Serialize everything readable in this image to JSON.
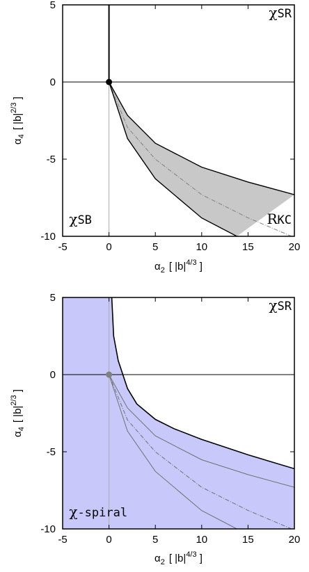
{
  "chart_data": [
    {
      "type": "area",
      "title": "",
      "xlabel": {
        "symbol": "α",
        "sub": "2",
        "unit": "[ |b|",
        "sup": "4/3",
        "close": " ]"
      },
      "ylabel": {
        "symbol": "α",
        "sub": "4",
        "unit": "[ |b|",
        "sup": "2/3",
        "close": " ]"
      },
      "xlim": [
        -5,
        20
      ],
      "ylim": [
        -10,
        5
      ],
      "xticks": [
        -5,
        0,
        5,
        10,
        15,
        20
      ],
      "yticks": [
        -10,
        -5,
        0,
        5
      ],
      "xtick_labels": [
        "-5",
        "0",
        "5",
        "10",
        "15",
        "20"
      ],
      "ytick_labels": [
        "-10",
        "-5",
        "0",
        "5"
      ],
      "region_labels": [
        {
          "text": "χSR",
          "x": 19.7,
          "y": 4.2,
          "anchor": "end"
        },
        {
          "text": "χSB",
          "x": -4.3,
          "y": -9.2,
          "anchor": "start"
        },
        {
          "text": "RKC",
          "x": 19.7,
          "y": -9.2,
          "anchor": "end"
        }
      ],
      "point": {
        "x": 0,
        "y": 0
      },
      "vertical_line": {
        "x": 0,
        "y_from": 0,
        "y_to": 5
      },
      "shaded_region": {
        "color": "#c8c8c8",
        "upper_boundary": [
          [
            0,
            0
          ],
          [
            2,
            -2.16
          ],
          [
            5,
            -3.97
          ],
          [
            10,
            -5.52
          ],
          [
            15,
            -6.48
          ],
          [
            20,
            -7.3
          ]
        ],
        "lower_boundary": [
          [
            0,
            0
          ],
          [
            2,
            -3.66
          ],
          [
            5,
            -6.27
          ],
          [
            10,
            -8.81
          ],
          [
            13.8,
            -10
          ]
        ]
      },
      "dashdot_curve": [
        [
          0,
          0
        ],
        [
          2,
          -2.94
        ],
        [
          5,
          -5.0
        ],
        [
          10,
          -7.3
        ],
        [
          15,
          -8.8
        ],
        [
          19.7,
          -10
        ]
      ],
      "colors": {
        "fill": "#c8c8c8",
        "boundary": "#000000",
        "dashdot": "#808080",
        "reference": "#aaaaaa"
      }
    },
    {
      "type": "area",
      "title": "",
      "xlabel": {
        "symbol": "α",
        "sub": "2",
        "unit": "[ |b|",
        "sup": "4/3",
        "close": " ]"
      },
      "ylabel": {
        "symbol": "α",
        "sub": "4",
        "unit": "[ |b|",
        "sup": "2/3",
        "close": " ]"
      },
      "xlim": [
        -5,
        20
      ],
      "ylim": [
        -10,
        5
      ],
      "xticks": [
        -5,
        0,
        5,
        10,
        15,
        20
      ],
      "yticks": [
        -10,
        -5,
        0,
        5
      ],
      "xtick_labels": [
        "-5",
        "0",
        "5",
        "10",
        "15",
        "20"
      ],
      "ytick_labels": [
        "-10",
        "-5",
        "0",
        "5"
      ],
      "region_labels": [
        {
          "text": "χSR",
          "x": 19.7,
          "y": 4.2,
          "anchor": "end"
        },
        {
          "text": "χ-spiral",
          "x": -4.3,
          "y": -9.2,
          "anchor": "start"
        }
      ],
      "point": {
        "x": 0,
        "y": 0
      },
      "shaded_region": {
        "color": "#c8c8fa",
        "boundary": [
          [
            0.3,
            5
          ],
          [
            0.5,
            2.5
          ],
          [
            1,
            0.9
          ],
          [
            2,
            -0.9
          ],
          [
            3,
            -1.9
          ],
          [
            5,
            -2.9
          ],
          [
            7,
            -3.5
          ],
          [
            10,
            -4.2
          ],
          [
            15,
            -5.2
          ],
          [
            20,
            -6.1
          ]
        ]
      },
      "inner_curves": [
        {
          "style": "solid",
          "points": [
            [
              0,
              0
            ],
            [
              2,
              -2.16
            ],
            [
              5,
              -3.97
            ],
            [
              10,
              -5.52
            ],
            [
              15,
              -6.48
            ],
            [
              20,
              -7.3
            ]
          ]
        },
        {
          "style": "dashdot",
          "points": [
            [
              0,
              0
            ],
            [
              2,
              -2.94
            ],
            [
              5,
              -5.0
            ],
            [
              10,
              -7.3
            ],
            [
              15,
              -8.8
            ],
            [
              19.7,
              -10
            ]
          ]
        },
        {
          "style": "solid",
          "points": [
            [
              0,
              0
            ],
            [
              2,
              -3.66
            ],
            [
              5,
              -6.27
            ],
            [
              10,
              -8.81
            ],
            [
              13.8,
              -10
            ]
          ]
        }
      ],
      "colors": {
        "fill": "#c8c8fa",
        "boundary": "#000000",
        "inner": "#707070",
        "point": "#808080",
        "reference": "#aaaaaa"
      }
    }
  ]
}
